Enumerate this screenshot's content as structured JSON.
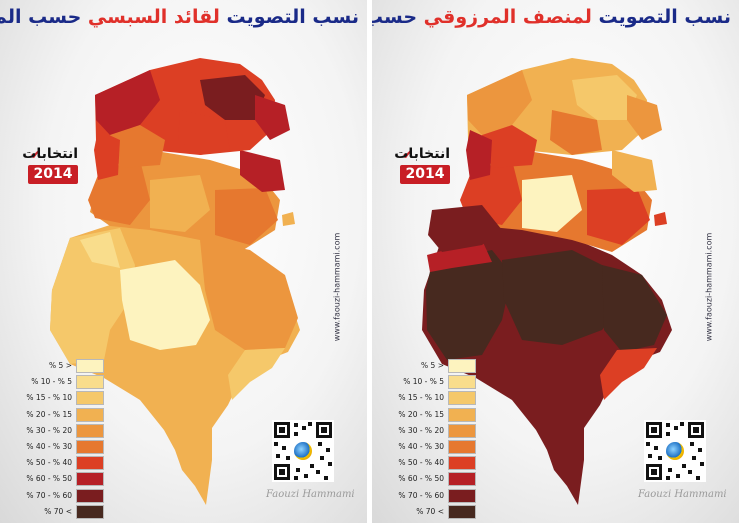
{
  "panels": [
    {
      "title_parts": [
        "نسب التصويت ",
        "لقائد السبسي",
        " حسب المعتمديات"
      ],
      "logo_text": "انتخابات",
      "logo_year": "2014",
      "website": "www.faouzi-hammami.com",
      "signature": "Faouzi Hammami"
    },
    {
      "title_parts": [
        "نسب التصويت ",
        "لمنصف المرزوقي",
        " حسب المعتمديات"
      ],
      "logo_text": "انتخابات",
      "logo_year": "2014",
      "website": "www.faouzi-hammami.com",
      "signature": "Faouzi Hammami"
    }
  ],
  "legend": [
    {
      "label": "% 5 >",
      "color": "#fdf3bf"
    },
    {
      "label": "% 10 - % 5",
      "color": "#f9dd8c"
    },
    {
      "label": "% 15 - % 10",
      "color": "#f5c86a"
    },
    {
      "label": "% 20 - % 15",
      "color": "#f1b151"
    },
    {
      "label": "% 30 - % 20",
      "color": "#ec963e"
    },
    {
      "label": "% 40 - % 30",
      "color": "#e6782f"
    },
    {
      "label": "% 50 - % 40",
      "color": "#dc3f24"
    },
    {
      "label": "% 60 - % 50",
      "color": "#b62026"
    },
    {
      "label": "% 70 - % 60",
      "color": "#7a1d1f"
    },
    {
      "label": "% 70 <",
      "color": "#47291f"
    }
  ],
  "colors": {
    "title_text": "#1a2a88",
    "title_highlight": "#e0302a"
  }
}
